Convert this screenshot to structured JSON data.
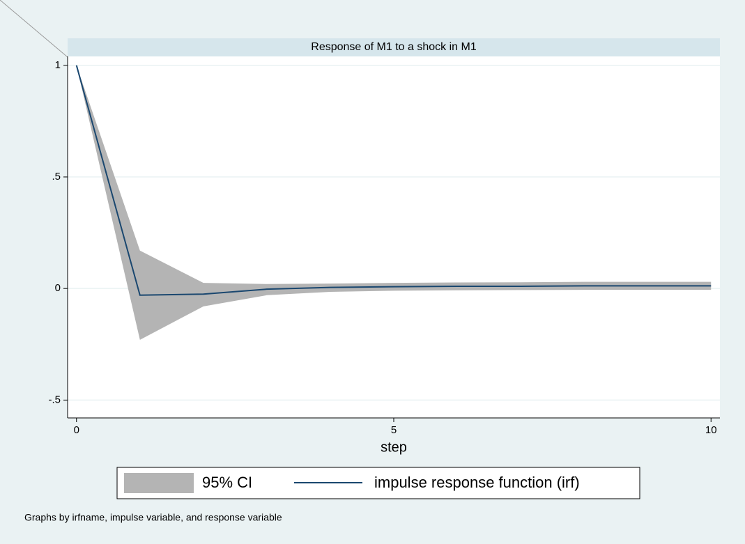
{
  "chart_data": {
    "type": "line",
    "title": "Response of M1 to a shock in M1",
    "xlabel": "step",
    "note": "Graphs by irfname, impulse variable, and response variable",
    "x": [
      0,
      1,
      2,
      3,
      4,
      5,
      6,
      7,
      8,
      9,
      10
    ],
    "xlim": [
      -0.14,
      10.14
    ],
    "xticks": [
      0,
      5,
      10
    ],
    "ylim": [
      -0.58,
      1.04
    ],
    "yticks": [
      {
        "value": -0.5,
        "label": "-.5"
      },
      0,
      {
        "value": 0.5,
        "label": ".5"
      },
      1
    ],
    "grid": true,
    "band": {
      "name": "95% CI",
      "color": "#b4b4b4",
      "lower": [
        1,
        -0.23,
        -0.08,
        -0.03,
        -0.015,
        -0.01,
        -0.008,
        -0.007,
        -0.006,
        -0.006,
        -0.006
      ],
      "upper": [
        1,
        0.17,
        0.025,
        0.02,
        0.022,
        0.025,
        0.027,
        0.028,
        0.03,
        0.03,
        0.03
      ]
    },
    "series": [
      {
        "name": "impulse response function (irf)",
        "color": "#1a476f",
        "values": [
          1,
          -0.03,
          -0.025,
          -0.003,
          0.005,
          0.008,
          0.01,
          0.01,
          0.012,
          0.012,
          0.012
        ]
      }
    ]
  }
}
